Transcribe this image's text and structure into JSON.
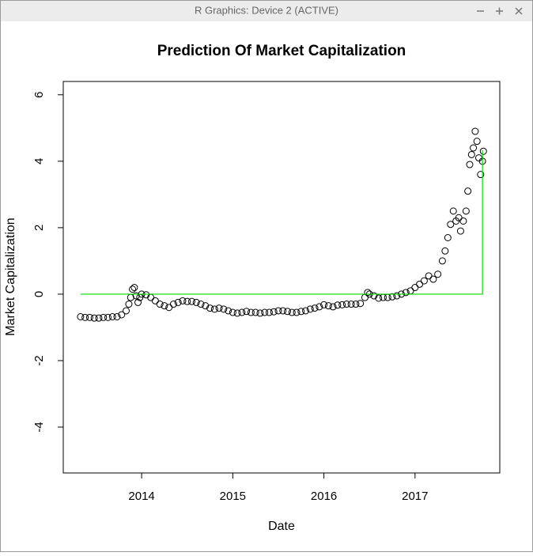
{
  "window": {
    "title": "R Graphics: Device 2 (ACTIVE)"
  },
  "chart_data": {
    "type": "scatter",
    "title": "Prediction Of Market Capitalization",
    "x_label": "Date",
    "y_label": "Market Capitalization",
    "xlim": [
      2013.14,
      2017.93
    ],
    "ylim": [
      -5.38,
      6.4
    ],
    "xticks": [
      2014,
      2015,
      2016,
      2017
    ],
    "yticks": [
      -4,
      -2,
      0,
      2,
      4,
      6
    ],
    "series": [
      {
        "type": "scatter",
        "color": "#000000",
        "x": [
          2013.33,
          2013.38,
          2013.43,
          2013.48,
          2013.53,
          2013.58,
          2013.63,
          2013.68,
          2013.73,
          2013.78,
          2013.83,
          2013.86,
          2013.88,
          2013.9,
          2013.92,
          2013.94,
          2013.96,
          2013.98,
          2014.0,
          2014.05,
          2014.1,
          2014.15,
          2014.2,
          2014.25,
          2014.3,
          2014.35,
          2014.4,
          2014.45,
          2014.5,
          2014.55,
          2014.6,
          2014.65,
          2014.7,
          2014.75,
          2014.8,
          2014.85,
          2014.9,
          2014.95,
          2015.0,
          2015.05,
          2015.1,
          2015.15,
          2015.2,
          2015.25,
          2015.3,
          2015.35,
          2015.4,
          2015.45,
          2015.5,
          2015.55,
          2015.6,
          2015.65,
          2015.7,
          2015.75,
          2015.8,
          2015.85,
          2015.9,
          2015.95,
          2016.0,
          2016.05,
          2016.1,
          2016.15,
          2016.2,
          2016.25,
          2016.3,
          2016.35,
          2016.4,
          2016.45,
          2016.48,
          2016.5,
          2016.55,
          2016.6,
          2016.65,
          2016.7,
          2016.75,
          2016.8,
          2016.85,
          2016.9,
          2016.95,
          2017.0,
          2017.05,
          2017.1,
          2017.15,
          2017.2,
          2017.25,
          2017.3,
          2017.33,
          2017.36,
          2017.39,
          2017.42,
          2017.45,
          2017.48,
          2017.5,
          2017.53,
          2017.56,
          2017.58,
          2017.6,
          2017.62,
          2017.64,
          2017.66,
          2017.68,
          2017.7,
          2017.72,
          2017.74,
          2017.75
        ],
        "values": [
          -0.68,
          -0.7,
          -0.7,
          -0.72,
          -0.72,
          -0.7,
          -0.7,
          -0.68,
          -0.68,
          -0.62,
          -0.5,
          -0.3,
          -0.1,
          0.15,
          0.2,
          -0.05,
          -0.25,
          -0.1,
          0.0,
          -0.02,
          -0.1,
          -0.2,
          -0.3,
          -0.35,
          -0.4,
          -0.3,
          -0.25,
          -0.2,
          -0.22,
          -0.22,
          -0.25,
          -0.3,
          -0.35,
          -0.42,
          -0.45,
          -0.42,
          -0.45,
          -0.5,
          -0.55,
          -0.57,
          -0.55,
          -0.52,
          -0.55,
          -0.55,
          -0.57,
          -0.55,
          -0.55,
          -0.53,
          -0.5,
          -0.5,
          -0.52,
          -0.55,
          -0.55,
          -0.52,
          -0.5,
          -0.45,
          -0.42,
          -0.38,
          -0.32,
          -0.35,
          -0.38,
          -0.33,
          -0.32,
          -0.3,
          -0.3,
          -0.3,
          -0.28,
          -0.1,
          0.05,
          0.0,
          -0.05,
          -0.12,
          -0.1,
          -0.1,
          -0.08,
          -0.05,
          0.0,
          0.05,
          0.1,
          0.2,
          0.3,
          0.4,
          0.55,
          0.45,
          0.6,
          1.0,
          1.3,
          1.7,
          2.1,
          2.5,
          2.2,
          2.3,
          1.9,
          2.2,
          2.5,
          3.1,
          3.9,
          4.2,
          4.4,
          4.9,
          4.6,
          4.1,
          3.6,
          4.0,
          4.3
        ]
      },
      {
        "type": "line",
        "color": "#00dd00",
        "x": [
          2013.33,
          2017.74,
          2017.74
        ],
        "values": [
          0,
          0,
          4.33
        ]
      }
    ]
  }
}
